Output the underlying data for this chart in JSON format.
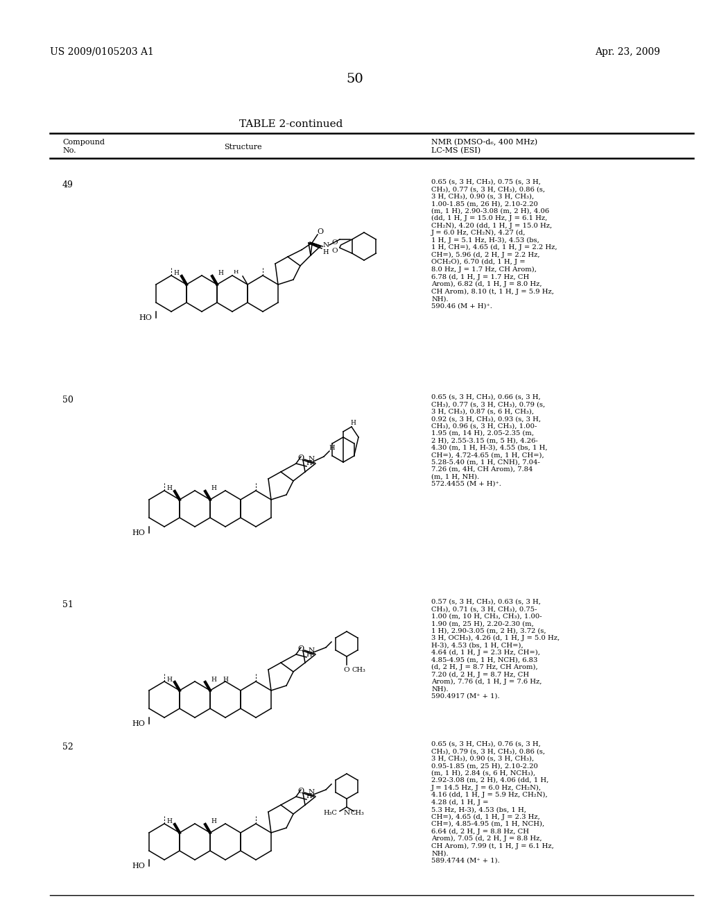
{
  "background_color": "#ffffff",
  "page_number": "50",
  "patent_number": "US 2009/0105203 A1",
  "patent_date": "Apr. 23, 2009",
  "table_title": "TABLE 2-continued",
  "col_headers": [
    "Compound\nNo.",
    "Structure",
    "NMR (DMSO-d₆, 400 MHz)\nLC-MS (ESI)"
  ],
  "compounds": [
    {
      "no": "49",
      "nmr": "0.65 (s, 3 H, CH₃), 0.75 (s, 3 H,\nCH₃), 0.77 (s, 3 H, CH₃), 0.86 (s,\n3 H, CH₃), 0.90 (s, 3 H, CH₃),\n1.00-1.85 (m, 26 H), 2.10-2.20\n(m, 1 H), 2.90-3.08 (m, 2 H), 4.06\n(dd, 1 H, J = 15.0 Hz, J = 6.1 Hz,\nCH₂N), 4.20 (dd, 1 H, J = 15.0 Hz,\nJ = 6.0 Hz, CH₂N), 4.27 (d,\n1 H, J = 5.1 Hz, H-3), 4.53 (bs,\n1 H, CH=), 4.65 (d, 1 H, J = 2.2 Hz,\nCH=), 5.96 (d, 2 H, J = 2.2 Hz,\nOCH₂O), 6.70 (dd, 1 H, J =\n8.0 Hz, J = 1.7 Hz, CH Arom),\n6.78 (d, 1 H, J = 1.7 Hz, CH\nArom), 6.82 (d, 1 H, J = 8.0 Hz,\nCH Arom), 8.10 (t, 1 H, J = 5.9 Hz,\nNH).\n590.46 (M + H)⁺."
    },
    {
      "no": "50",
      "nmr": "0.65 (s, 3 H, CH₃), 0.66 (s, 3 H,\nCH₃), 0.77 (s, 3 H, CH₃), 0.79 (s,\n3 H, CH₃), 0.87 (s, 6 H, CH₃),\n0.92 (s, 3 H, CH₃), 0.93 (s, 3 H,\nCH₃), 0.96 (s, 3 H, CH₃), 1.00-\n1.95 (m, 14 H), 2.05-2.35 (m,\n2 H), 2.55-3.15 (m, 5 H), 4.26-\n4.30 (m, 1 H, H-3), 4.55 (bs, 1 H,\nCH=), 4.72-4.65 (m, 1 H, CH=),\n5.28-5.40 (m, 1 H, CNH), 7.04-\n7.26 (m, 4H, CH Arom), 7.84\n(m, 1 H, NH).\n572.4455 (M + H)⁺."
    },
    {
      "no": "51",
      "nmr": "0.57 (s, 3 H, CH₃), 0.63 (s, 3 H,\nCH₃), 0.71 (s, 3 H, CH₃), 0.75-\n1.00 (m, 10 H, CH₃, CH₃), 1.00-\n1.90 (m, 25 H), 2.20-2.30 (m,\n1 H), 2.90-3.05 (m, 2 H), 3.72 (s,\n3 H, OCH₃), 4.26 (d, 1 H, J = 5.0 Hz,\nH-3), 4.53 (bs, 1 H, CH=),\n4.64 (d, 1 H, J = 2.3 Hz, CH=),\n4.85-4.95 (m, 1 H, NCH), 6.83\n(d, 2 H, J = 8.7 Hz, CH Arom),\n7.20 (d, 2 H, J = 8.7 Hz, CH\nArom), 7.76 (d, 1 H, J = 7.6 Hz,\nNH).\n590.4917 (M⁺ + 1)."
    },
    {
      "no": "52",
      "nmr": "0.65 (s, 3 H, CH₃), 0.76 (s, 3 H,\nCH₃), 0.79 (s, 3 H, CH₃), 0.86 (s,\n3 H, CH₃), 0.90 (s, 3 H, CH₃),\n0.95-1.85 (m, 25 H), 2.10-2.20\n(m, 1 H), 2.84 (s, 6 H, NCH₃),\n2.92-3.08 (m, 2 H), 4.06 (dd, 1 H,\nJ = 14.5 Hz, J = 6.0 Hz, CH₂N),\n4.16 (dd, 1 H, J = 5.9 Hz, CH₂N),\n4.28 (d, 1 H, J =\n5.3 Hz, H-3), 4.53 (bs, 1 H,\nCH=), 4.65 (d, 1 H, J = 2.3 Hz,\nCH=), 4.85-4.95 (m, 1 H, NCH),\n6.64 (d, 2 H, J = 8.8 Hz, CH\nArom), 7.05 (d, 2 H, J = 8.8 Hz,\nCH Arom), 7.99 (t, 1 H, J = 6.1 Hz,\nNH).\n589.4744 (M⁺ + 1)."
    }
  ]
}
